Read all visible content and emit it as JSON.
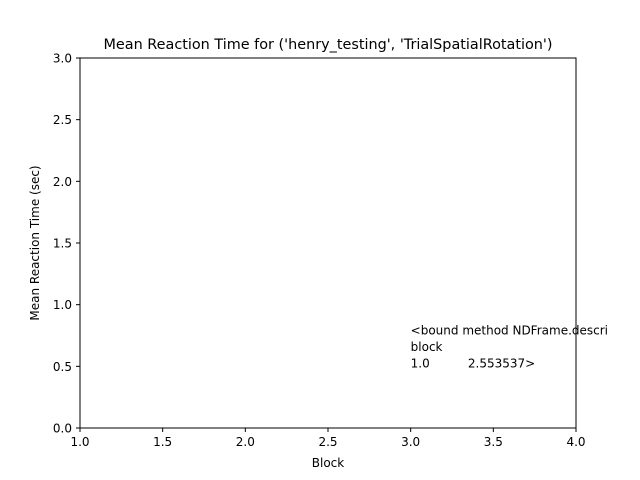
{
  "chart_data": {
    "type": "line",
    "title": "Mean Reaction Time for ('henry_testing', 'TrialSpatialRotation')",
    "xlabel": "Block",
    "ylabel": "Mean Reaction Time (sec)",
    "xlim": [
      1.0,
      4.0
    ],
    "ylim": [
      0.0,
      3.0
    ],
    "x_ticks": [
      1.0,
      1.5,
      2.0,
      2.5,
      3.0,
      3.5,
      4.0
    ],
    "x_tick_labels": [
      "1.0",
      "1.5",
      "2.0",
      "2.5",
      "3.0",
      "3.5",
      "4.0"
    ],
    "y_ticks": [
      0.0,
      0.5,
      1.0,
      1.5,
      2.0,
      2.5,
      3.0
    ],
    "y_tick_labels": [
      "0.0",
      "0.5",
      "1.0",
      "1.5",
      "2.0",
      "2.5",
      "3.0"
    ],
    "grid": false,
    "series": [],
    "annotations": [
      {
        "x": 3.0,
        "y": 0.5,
        "lines": [
          "<bound method NDFrame.descri",
          "block",
          "1.0          2.553537>"
        ]
      }
    ]
  }
}
